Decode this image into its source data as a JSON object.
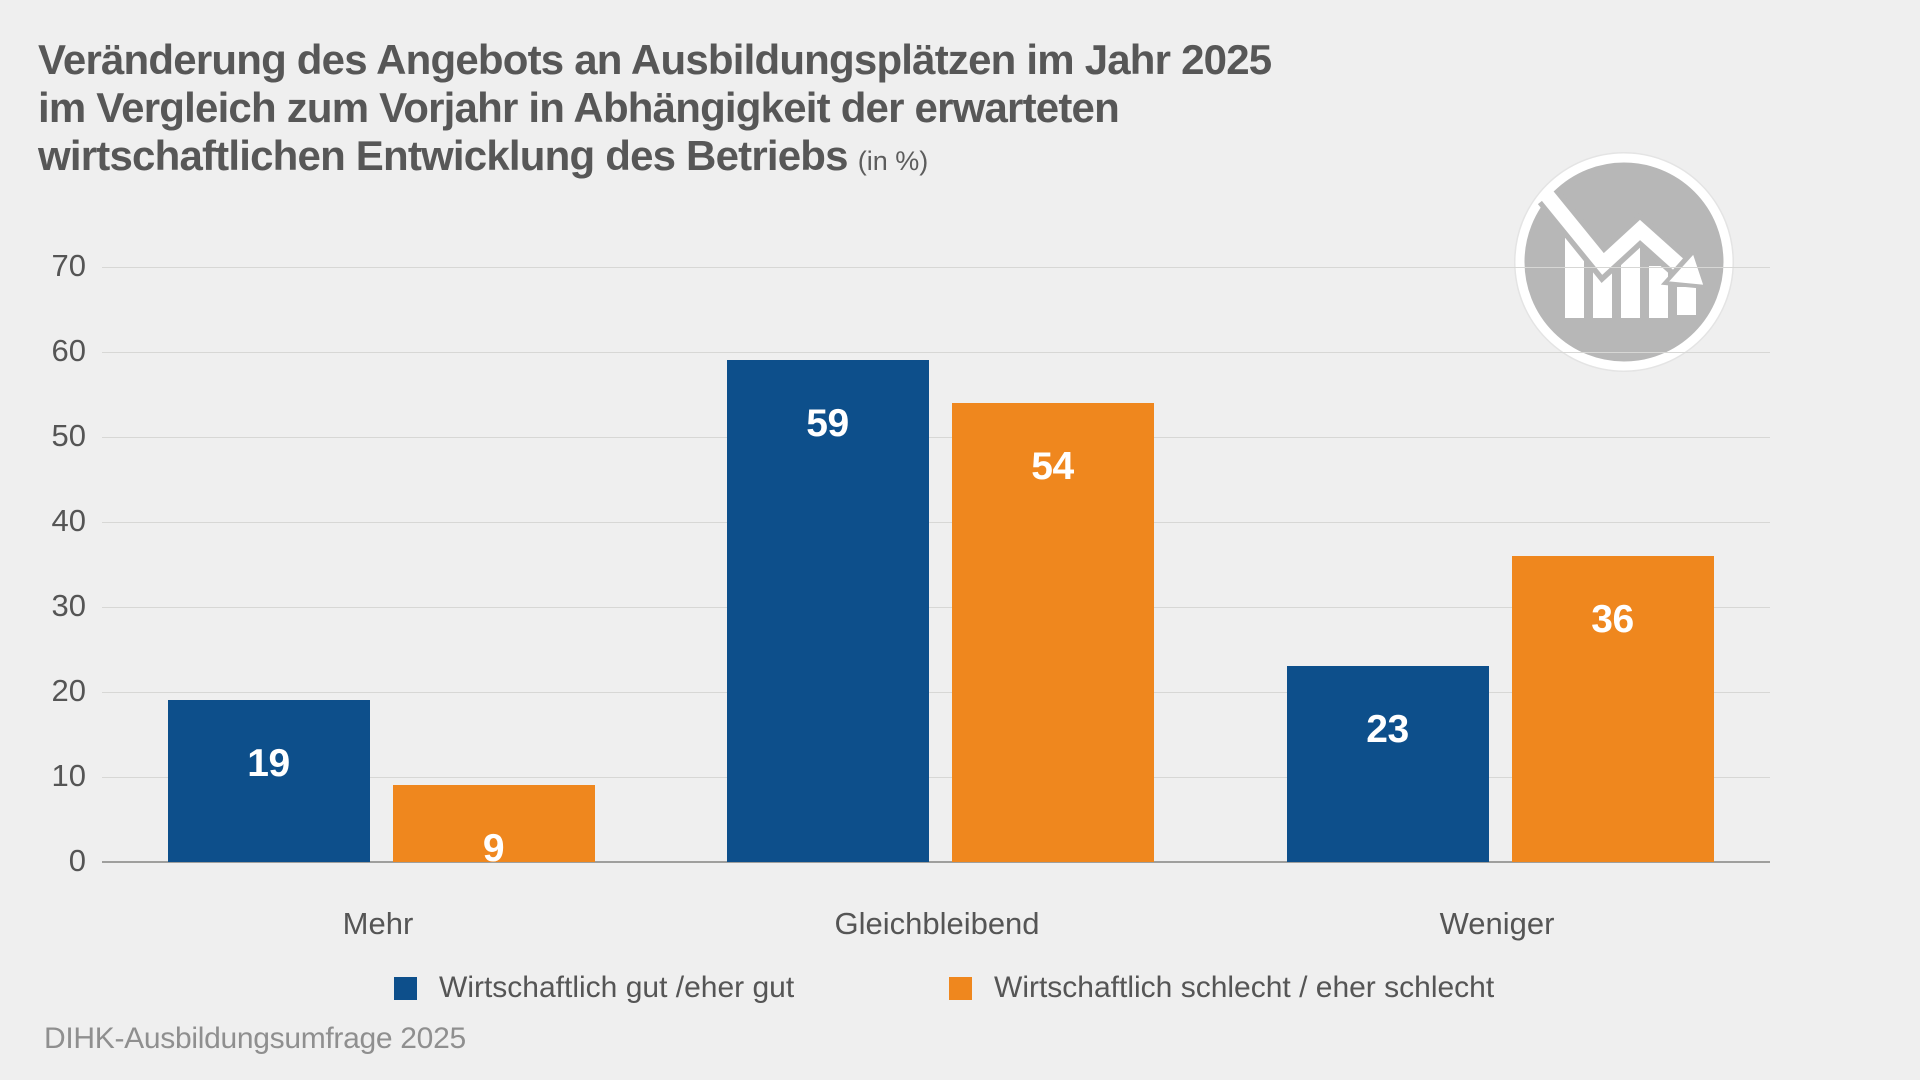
{
  "page": {
    "background": "#efefef",
    "source": "DIHK-Ausbildungsumfrage 2025"
  },
  "title": {
    "line1": "Veränderung des Angebots an Ausbildungsplätzen im Jahr 2025",
    "line2": "im Vergleich zum Vorjahr in Abhängigkeit der erwarteten",
    "line3": "wirtschaftlichen Entwicklung des Betriebs",
    "suffix": "(in %)"
  },
  "icon": {
    "name": "declining-bar-chart-icon",
    "circle_color": "#b7b7b7",
    "glyph_color": "#ffffff"
  },
  "colors": {
    "background": "#efefef",
    "title_text": "#575757",
    "axis_text": "#555555",
    "grid_line": "#d7d7d5",
    "base_line": "#9f9f9d",
    "source_text": "#8f8f8f",
    "series_blue": "#0d4f8b",
    "series_orange": "#ef871e",
    "value_label": "#ffffff"
  },
  "chart_data": {
    "type": "bar",
    "title": "Veränderung des Angebots an Ausbildungsplätzen im Jahr 2025 im Vergleich zum Vorjahr in Abhängigkeit der erwarteten wirtschaftlichen Entwicklung des Betriebs (in %)",
    "unit": "%",
    "categories": [
      "Mehr",
      "Gleichbleibend",
      "Weniger"
    ],
    "series": [
      {
        "name": "Wirtschaftlich gut /eher gut",
        "color": "#0d4f8b",
        "values": [
          19,
          59,
          23
        ]
      },
      {
        "name": "Wirtschaftlich schlecht / eher schlecht",
        "color": "#ef871e",
        "values": [
          9,
          54,
          36
        ]
      }
    ],
    "xlabel": "",
    "ylabel": "",
    "ylim": [
      0,
      70
    ],
    "yticks": [
      0,
      10,
      20,
      30,
      40,
      50,
      60,
      70
    ],
    "grid": true,
    "legend_position": "bottom",
    "value_labels": "inside-top",
    "source": "DIHK-Ausbildungsumfrage 2025"
  }
}
